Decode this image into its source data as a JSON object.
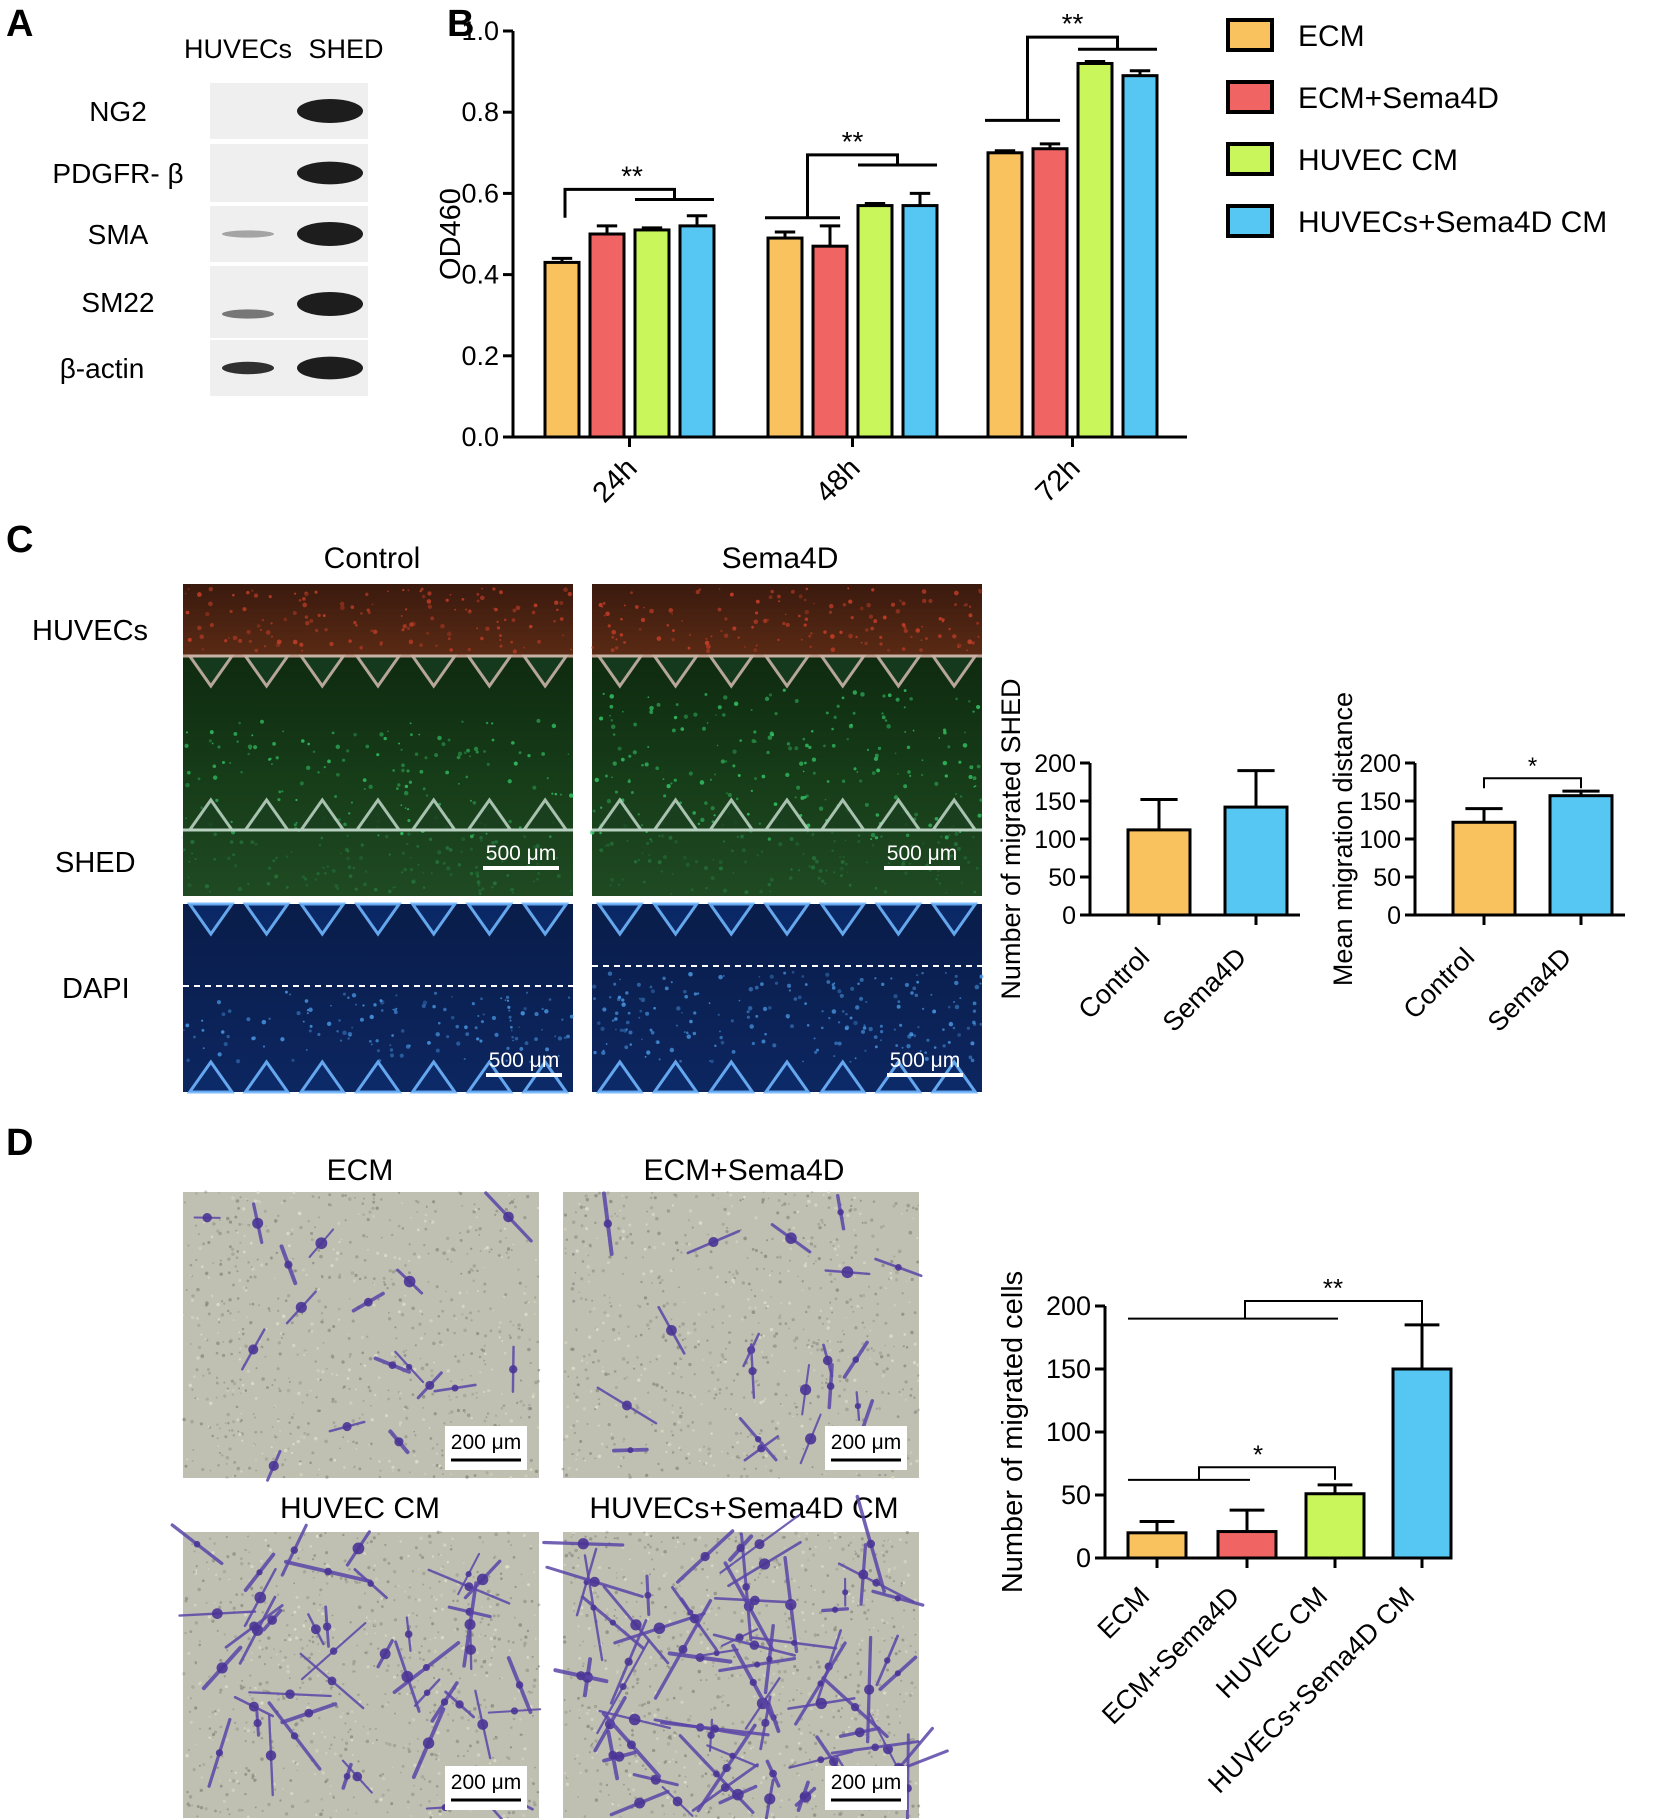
{
  "colors": {
    "ecm": "#f9c25f",
    "ecm_sema4d": "#f06464",
    "huvec_cm": "#c9f65a",
    "huvecs_sema4d_cm": "#56c6f2",
    "micrograph_red": "#d0402a",
    "micrograph_green": "#36d26e",
    "micrograph_blue": "#1f3f86",
    "dapi_blue": "#4fa3f0",
    "transwell_bg": "#bfbfb2",
    "crystal_violet": "#5b46a8"
  },
  "panel_a": {
    "letter": "A",
    "lane_labels": [
      "HUVECs",
      "SHED"
    ],
    "blots": [
      {
        "name": "NG2",
        "huvec_band": 0.0,
        "shed_band": 1.0
      },
      {
        "name": "PDGFR- β",
        "huvec_band": 0.0,
        "shed_band": 0.9
      },
      {
        "name": "SMA",
        "huvec_band": 0.15,
        "shed_band": 1.0
      },
      {
        "name": "SM22",
        "huvec_band": 0.4,
        "shed_band": 1.0
      },
      {
        "name": "β-actin",
        "huvec_band": 0.8,
        "shed_band": 0.9
      }
    ]
  },
  "panel_b": {
    "letter": "B",
    "legend": [
      "ECM",
      "ECM+Sema4D",
      "HUVEC CM",
      "HUVECs+Sema4D CM"
    ],
    "significance": [
      "**",
      "**",
      "**"
    ]
  },
  "panel_c": {
    "letter": "C",
    "col_titles": [
      "Control",
      "Sema4D"
    ],
    "row_labels": [
      "HUVECs",
      "SHED",
      "DAPI"
    ],
    "scale_bar": "500 μm",
    "chart1_sig": "",
    "chart2_sig": "*"
  },
  "panel_d": {
    "letter": "D",
    "image_titles": [
      "ECM",
      "ECM+Sema4D",
      "HUVEC CM",
      "HUVECs+Sema4D CM"
    ],
    "scale_bar": "200 μm",
    "sig_labels": [
      "**",
      "*"
    ]
  },
  "chart_data": [
    {
      "type": "bar",
      "panel": "B",
      "ylabel": "OD460",
      "categories": [
        "24h",
        "48h",
        "72h"
      ],
      "ylim": [
        0,
        1.0
      ],
      "yticks": [
        "0.0",
        "0.2",
        "0.4",
        "0.6",
        "0.8",
        "1.0"
      ],
      "series": [
        {
          "name": "ECM",
          "values": [
            0.43,
            0.49,
            0.7
          ],
          "errors": [
            0.01,
            0.015,
            0.005
          ]
        },
        {
          "name": "ECM+Sema4D",
          "values": [
            0.5,
            0.47,
            0.71
          ],
          "errors": [
            0.02,
            0.05,
            0.012
          ]
        },
        {
          "name": "HUVEC CM",
          "values": [
            0.51,
            0.57,
            0.92
          ],
          "errors": [
            0.005,
            0.005,
            0.005
          ]
        },
        {
          "name": "HUVECs+Sema4D CM",
          "values": [
            0.52,
            0.57,
            0.89
          ],
          "errors": [
            0.025,
            0.03,
            0.012
          ]
        }
      ]
    },
    {
      "type": "bar",
      "panel": "C",
      "ylabel": "Number of migrated SHED",
      "categories": [
        "Control",
        "Sema4D"
      ],
      "values": [
        112,
        142
      ],
      "errors": [
        40,
        48
      ],
      "ylim": [
        0,
        200
      ],
      "yticks": [
        "0",
        "50",
        "100",
        "150",
        "200"
      ]
    },
    {
      "type": "bar",
      "panel": "C",
      "ylabel": "Mean migration distance",
      "categories": [
        "Control",
        "Sema4D"
      ],
      "values": [
        122,
        157
      ],
      "errors": [
        18,
        6
      ],
      "ylim": [
        0,
        200
      ],
      "yticks": [
        "0",
        "50",
        "100",
        "150",
        "200"
      ]
    },
    {
      "type": "bar",
      "panel": "D",
      "ylabel": "Number of migrated cells",
      "categories": [
        "ECM",
        "ECM+Sema4D",
        "HUVEC CM",
        "HUVECs+Sema4D CM"
      ],
      "values": [
        20,
        21,
        51,
        150
      ],
      "errors": [
        9,
        17,
        7,
        35
      ],
      "ylim": [
        0,
        200
      ],
      "yticks": [
        "0",
        "50",
        "100",
        "150",
        "200"
      ]
    }
  ]
}
